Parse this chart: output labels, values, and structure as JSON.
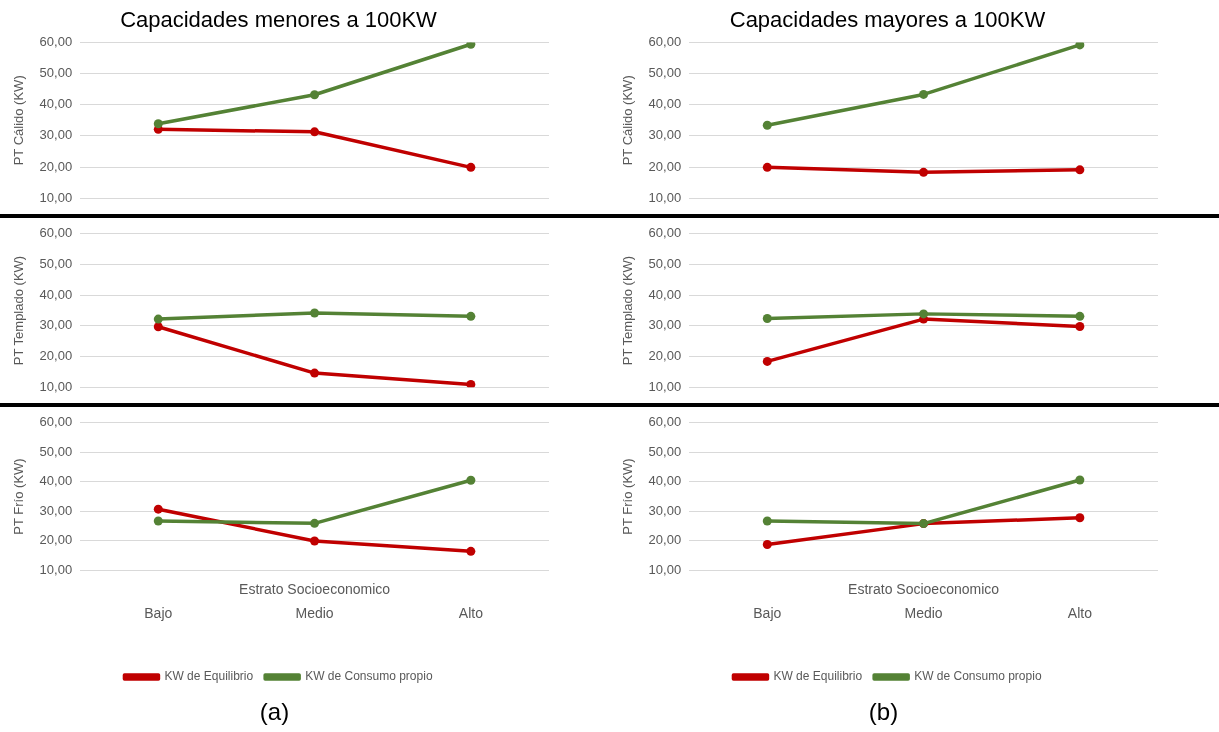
{
  "chart_data": [
    {
      "type": "line",
      "title": "Capacidades menores a 100KW",
      "ylabel": "PT Cálido (KW)",
      "categories": [
        null,
        null,
        null
      ],
      "tick_labels": "y",
      "grid": "y",
      "legend": false,
      "marker": "circle",
      "line_style": "solid",
      "ylim": [
        10,
        60
      ],
      "yticks": [
        {
          "value": 10,
          "label": "10,00"
        },
        {
          "value": 20,
          "label": "20,00"
        },
        {
          "value": 30,
          "label": "30,00"
        },
        {
          "value": 40,
          "label": "40,00"
        },
        {
          "value": 50,
          "label": "50,00"
        },
        {
          "value": 60,
          "label": "60,00"
        }
      ],
      "series": [
        {
          "color": "#c00000",
          "values": [
            32.1,
            31.3,
            19.9
          ]
        },
        {
          "color": "#548235",
          "values": [
            33.9,
            43.2,
            59.4
          ]
        }
      ]
    },
    {
      "type": "line",
      "title": "Capacidades mayores a 100KW",
      "ylabel": "PT Cálido (KW)",
      "categories": [
        null,
        null,
        null
      ],
      "tick_labels": "y",
      "grid": "y",
      "legend": false,
      "marker": "circle",
      "line_style": "solid",
      "ylim": [
        10,
        60
      ],
      "yticks": [
        {
          "value": 10,
          "label": "10,00"
        },
        {
          "value": 20,
          "label": "20,00"
        },
        {
          "value": 30,
          "label": "30,00"
        },
        {
          "value": 40,
          "label": "40,00"
        },
        {
          "value": 50,
          "label": "50,00"
        },
        {
          "value": 60,
          "label": "60,00"
        }
      ],
      "series": [
        {
          "color": "#c00000",
          "values": [
            19.9,
            18.3,
            19.1
          ]
        },
        {
          "color": "#548235",
          "values": [
            33.4,
            43.3,
            59.2
          ]
        }
      ]
    },
    {
      "type": "line",
      "ylabel": "PT Templado (KW)",
      "categories": [
        null,
        null,
        null
      ],
      "tick_labels": "y",
      "grid": "y",
      "legend": false,
      "marker": "circle",
      "line_style": "solid",
      "ylim": [
        10,
        60
      ],
      "yticks": [
        {
          "value": 10,
          "label": "10,00"
        },
        {
          "value": 20,
          "label": "20,00"
        },
        {
          "value": 30,
          "label": "30,00"
        },
        {
          "value": 40,
          "label": "40,00"
        },
        {
          "value": 50,
          "label": "50,00"
        },
        {
          "value": 60,
          "label": "60,00"
        }
      ],
      "series": [
        {
          "color": "#c00000",
          "values": [
            29.7,
            14.6,
            10.9
          ]
        },
        {
          "color": "#548235",
          "values": [
            32.2,
            34.2,
            33.1
          ]
        }
      ]
    },
    {
      "type": "line",
      "ylabel": "PT Templado (KW)",
      "categories": [
        null,
        null,
        null
      ],
      "tick_labels": "y",
      "grid": "y",
      "legend": false,
      "marker": "circle",
      "line_style": "solid",
      "ylim": [
        10,
        60
      ],
      "yticks": [
        {
          "value": 10,
          "label": "10,00"
        },
        {
          "value": 20,
          "label": "20,00"
        },
        {
          "value": 30,
          "label": "30,00"
        },
        {
          "value": 40,
          "label": "40,00"
        },
        {
          "value": 50,
          "label": "50,00"
        },
        {
          "value": 60,
          "label": "60,00"
        }
      ],
      "series": [
        {
          "color": "#c00000",
          "values": [
            18.4,
            32.2,
            29.8
          ]
        },
        {
          "color": "#548235",
          "values": [
            32.4,
            33.9,
            33.1
          ]
        }
      ]
    },
    {
      "type": "line",
      "ylabel": "PT Frío (KW)",
      "xlabel": "Estrato Socioeconomico",
      "categories": [
        "Bajo",
        "Medio",
        "Alto"
      ],
      "grid": "y",
      "legend": "bottom",
      "marker": "circle",
      "line_style": "solid",
      "ylim": [
        10,
        60
      ],
      "yticks": [
        {
          "value": 10,
          "label": "10,00"
        },
        {
          "value": 20,
          "label": "20,00"
        },
        {
          "value": 30,
          "label": "30,00"
        },
        {
          "value": 40,
          "label": "40,00"
        },
        {
          "value": 50,
          "label": "50,00"
        },
        {
          "value": 60,
          "label": "60,00"
        }
      ],
      "annotations": [
        "(a)"
      ],
      "series": [
        {
          "name": "KW de Equilibrio",
          "color": "#c00000",
          "values": [
            30.7,
            19.9,
            16.4
          ]
        },
        {
          "name": "KW de Consumo propio",
          "color": "#548235",
          "values": [
            26.7,
            25.9,
            40.5
          ]
        }
      ]
    },
    {
      "type": "line",
      "ylabel": "PT Frío (KW)",
      "xlabel": "Estrato Socioeconomico",
      "categories": [
        "Bajo",
        "Medio",
        "Alto"
      ],
      "grid": "y",
      "legend": "bottom",
      "marker": "circle",
      "line_style": "solid",
      "ylim": [
        10,
        60
      ],
      "yticks": [
        {
          "value": 10,
          "label": "10,00"
        },
        {
          "value": 20,
          "label": "20,00"
        },
        {
          "value": 30,
          "label": "30,00"
        },
        {
          "value": 40,
          "label": "40,00"
        },
        {
          "value": 50,
          "label": "50,00"
        },
        {
          "value": 60,
          "label": "60,00"
        }
      ],
      "annotations": [
        "(b)"
      ],
      "series": [
        {
          "name": "KW de Equilibrio",
          "color": "#c00000",
          "values": [
            18.7,
            25.8,
            27.8
          ]
        },
        {
          "name": "KW de Consumo propio",
          "color": "#548235",
          "values": [
            26.7,
            25.8,
            40.6
          ]
        }
      ]
    }
  ]
}
